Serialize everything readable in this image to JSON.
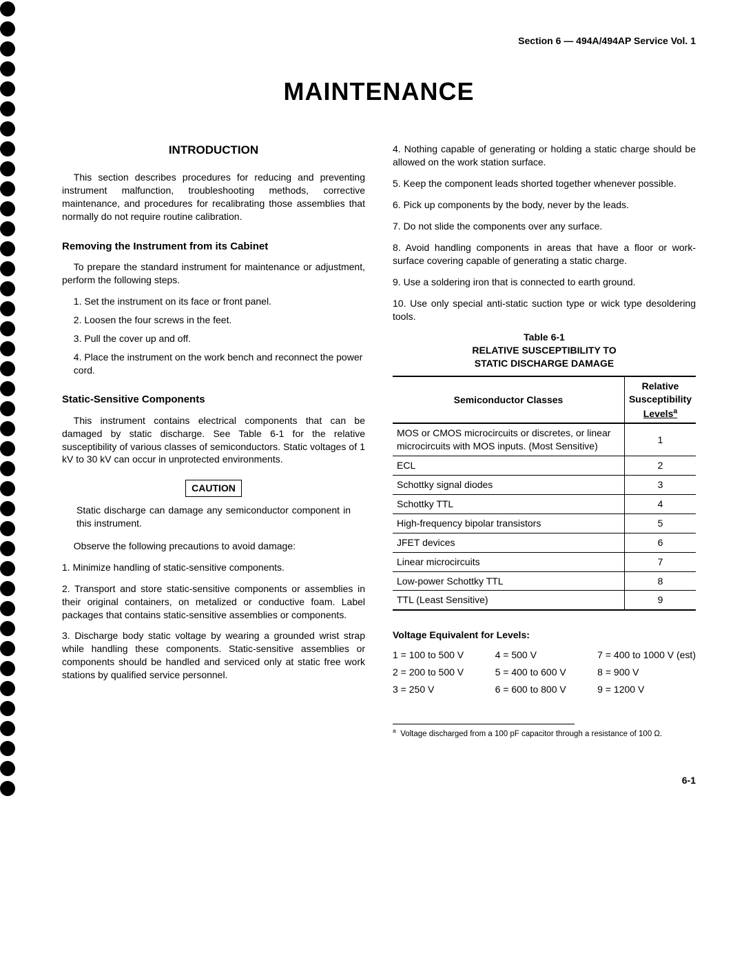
{
  "header": {
    "section": "Section 6 — 494A/494AP Service Vol. 1"
  },
  "title": "MAINTENANCE",
  "left": {
    "h2": "INTRODUCTION",
    "intro": "This section describes procedures for reducing and preventing instrument malfunction, troubleshooting methods, corrective maintenance, and procedures for recalibrating those assemblies that normally do not require routine calibration.",
    "h3_cabinet": "Removing the Instrument from its Cabinet",
    "cabinet_lead": "To prepare the standard instrument for maintenance or adjustment, perform the following steps.",
    "cabinet_steps": [
      "1.  Set the instrument on its face or front panel.",
      "2.  Loosen the four screws in the feet.",
      "3.  Pull the cover up and off.",
      "4.  Place the instrument on the work bench and reconnect the power cord."
    ],
    "h3_static": "Static-Sensitive Components",
    "static_p1": "This instrument contains electrical components that can be damaged by static discharge. See Table 6-1 for the relative susceptibility of various classes of semiconductors. Static voltages of 1 kV to 30 kV can occur in unprotected environments.",
    "caution_label": "CAUTION",
    "caution_text": "Static discharge can damage any semiconductor component in this instrument.",
    "observe": "Observe the following precautions to avoid damage:",
    "prec1": "1. Minimize handling of static-sensitive components.",
    "prec2": "2. Transport and store static-sensitive components or assemblies in their original containers, on metalized or conductive foam. Label packages that contains static-sensitive assemblies or components.",
    "prec3": "3. Discharge body static voltage by wearing a grounded wrist strap while handling these components. Static-sensitive assemblies or components should be handled and serviced only at static free work stations by qualified service personnel."
  },
  "right": {
    "prec4": "4. Nothing capable of generating or holding a static charge should be allowed on the work station surface.",
    "prec5": "5. Keep the component leads shorted together whenever possible.",
    "prec6": "6. Pick up components by the body, never by the leads.",
    "prec7": "7. Do not slide the components over any surface.",
    "prec8": "8. Avoid handling components in areas that have a floor or work-surface covering capable of generating a static charge.",
    "prec9": "9. Use a soldering iron that is connected to earth ground.",
    "prec10": "10. Use only special anti-static suction type or wick type desoldering tools.",
    "table_number": "Table 6-1",
    "table_title1": "RELATIVE SUSCEPTIBILITY TO",
    "table_title2": "STATIC DISCHARGE DAMAGE",
    "th1": "Semiconductor Classes",
    "th2_l1": "Relative",
    "th2_l2": "Susceptibility",
    "th2_l3": "Levels",
    "rows": [
      {
        "c": "MOS or CMOS microcircuits or discretes, or linear microcircuits with MOS inputs. (Most Sensitive)",
        "v": "1"
      },
      {
        "c": "ECL",
        "v": "2"
      },
      {
        "c": "Schottky signal diodes",
        "v": "3"
      },
      {
        "c": "Schottky TTL",
        "v": "4"
      },
      {
        "c": "High-frequency bipolar transistors",
        "v": "5"
      },
      {
        "c": "JFET devices",
        "v": "6"
      },
      {
        "c": "Linear microcircuits",
        "v": "7"
      },
      {
        "c": "Low-power Schottky TTL",
        "v": "8"
      },
      {
        "c": "TTL (Least Sensitive)",
        "v": "9"
      }
    ],
    "voltage_title": "Voltage Equivalent for Levels:",
    "voltage_cells": [
      "1 = 100 to 500 V",
      "4 = 500 V",
      "7 = 400 to 1000 V (est)",
      "2 = 200 to 500 V",
      "5 = 400 to 600 V",
      "8 = 900 V",
      "3 = 250 V",
      "6 = 600 to 800 V",
      "9 = 1200 V"
    ],
    "footnote_marker": "a",
    "footnote": "Voltage discharged from a 100 pF capacitor through a resistance of 100 Ω."
  },
  "pagenum": "6-1",
  "style": {
    "bullet_count": 40,
    "colors": {
      "text": "#000000",
      "bg": "#ffffff",
      "border": "#000000"
    }
  }
}
